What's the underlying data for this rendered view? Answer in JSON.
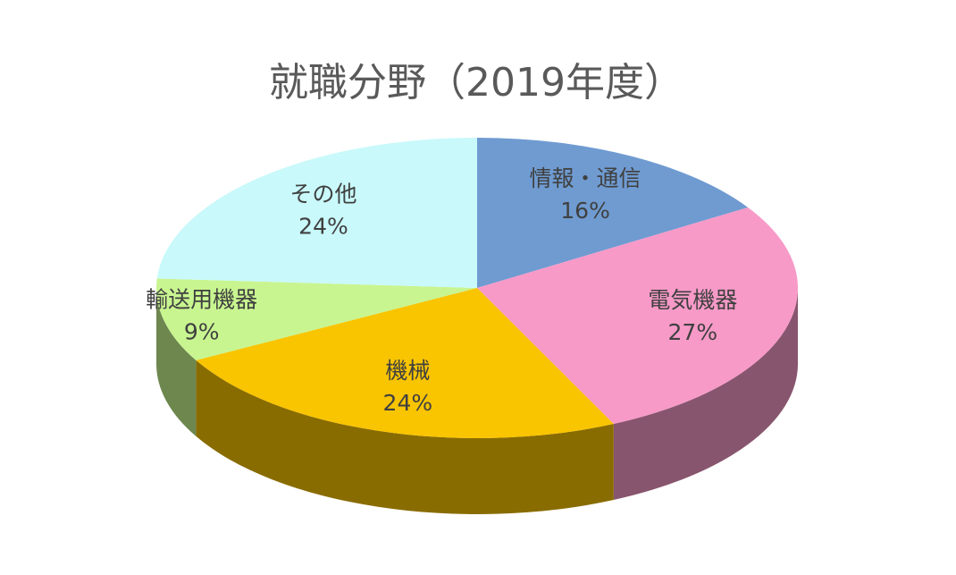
{
  "chart_data": {
    "type": "pie3d",
    "title": "就職分野（2019年度）",
    "categories": [
      "情報・通信",
      "電気機器",
      "機械",
      "輸送用機器",
      "その他"
    ],
    "values": [
      16,
      27,
      24,
      9,
      24
    ],
    "value_labels": [
      "16%",
      "27%",
      "24%",
      "9%",
      "24%"
    ],
    "colors": [
      "#6f9bd1",
      "#f79ac8",
      "#f9c400",
      "#c8f590",
      "#c9f9fa"
    ]
  }
}
